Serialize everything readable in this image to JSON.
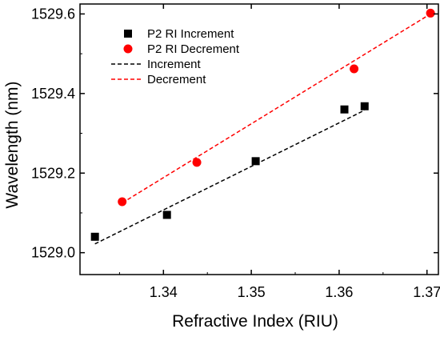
{
  "chart_data": {
    "type": "scatter",
    "title": "",
    "xlabel": "Refractive Index (RIU)",
    "ylabel": "Wavelength (nm)",
    "xlim": [
      1.3305,
      1.3713
    ],
    "ylim": [
      1528.945,
      1529.625
    ],
    "xticks": [
      1.34,
      1.35,
      1.36,
      1.37
    ],
    "yticks": [
      1529.0,
      1529.2,
      1529.4,
      1529.6
    ],
    "xtick_labels": [
      "1.34",
      "1.35",
      "1.36",
      "1.37"
    ],
    "ytick_labels": [
      "1529.0",
      "1529.2",
      "1529.4",
      "1529.6"
    ],
    "grid": false,
    "legend_position": "top-left",
    "series": [
      {
        "name": "P2 RI Increment",
        "kind": "points",
        "marker": "square",
        "color": "#000000",
        "x": [
          1.3322,
          1.3404,
          1.3505,
          1.3606,
          1.3629
        ],
        "y": [
          1529.04,
          1529.095,
          1529.23,
          1529.36,
          1529.368
        ]
      },
      {
        "name": "P2 RI Decrement",
        "kind": "points",
        "marker": "circle",
        "color": "#ff0000",
        "x": [
          1.3353,
          1.3438,
          1.3617,
          1.3704
        ],
        "y": [
          1529.128,
          1529.227,
          1529.462,
          1529.602
        ]
      },
      {
        "name": "Increment",
        "kind": "fit-line",
        "dash": true,
        "color": "#000000",
        "x": [
          1.3322,
          1.3629
        ],
        "y": [
          1529.022,
          1529.358
        ]
      },
      {
        "name": "Decrement",
        "kind": "fit-line",
        "dash": true,
        "color": "#ff0000",
        "x": [
          1.3353,
          1.3704
        ],
        "y": [
          1529.125,
          1529.6
        ]
      }
    ]
  }
}
